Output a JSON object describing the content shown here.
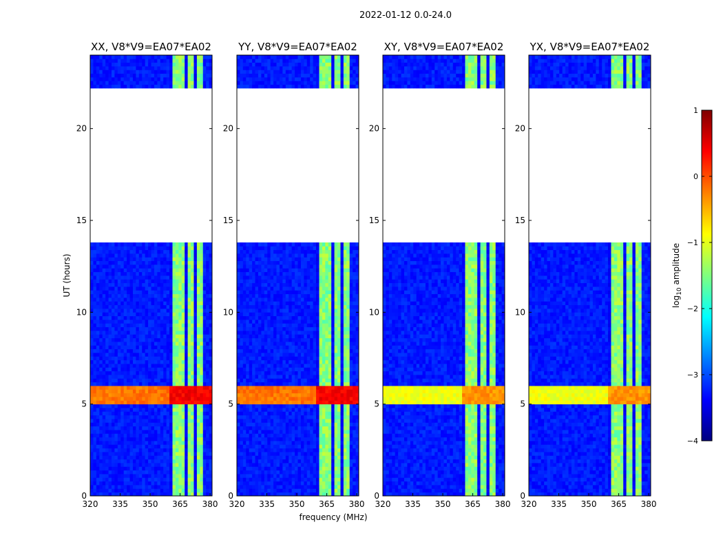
{
  "chart_data": {
    "type": "heatmap",
    "suptitle": "2022-01-12 0.0-24.0",
    "xlabel": "frequency (MHz)",
    "ylabel": "UT (hours)",
    "xlim": [
      320,
      381
    ],
    "ylim": [
      0,
      24
    ],
    "x_ticks": [
      "320",
      "335",
      "350",
      "365",
      "380"
    ],
    "y_ticks": [
      "0",
      "5",
      "10",
      "15",
      "20"
    ],
    "no_data_ranges_hours": [
      [
        13.8,
        22.3
      ]
    ],
    "high_amplitude_band_hours": [
      5.0,
      6.0
    ],
    "bright_frequency_band_mhz": [
      360,
      376
    ],
    "panels": [
      {
        "title": "XX, V8*V9=EA07*EA02"
      },
      {
        "title": "YY, V8*V9=EA07*EA02"
      },
      {
        "title": "XY, V8*V9=EA07*EA02"
      },
      {
        "title": "YX, V8*V9=EA07*EA02"
      }
    ],
    "colorbar": {
      "label": "log10 amplitude",
      "label_main": "log",
      "label_sub": "10",
      "label_rest": " amplitude",
      "range": [
        -4,
        1
      ],
      "ticks": [
        "1",
        "0",
        "−1",
        "−2",
        "−3",
        "−4"
      ],
      "colormap": "jet"
    }
  }
}
